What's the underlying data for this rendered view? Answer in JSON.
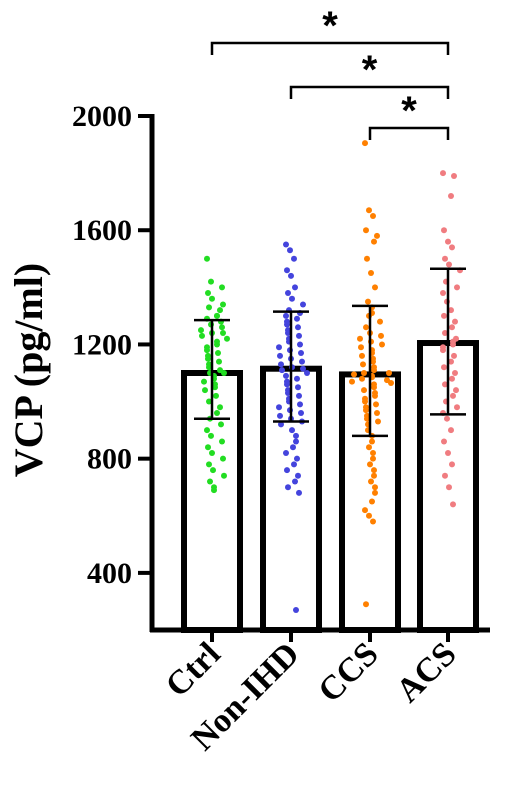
{
  "chart_data": {
    "type": "bar",
    "ylabel": "VCP (pg/ml)",
    "ylim": [
      200,
      2000
    ],
    "yticks": [
      400,
      800,
      1200,
      1600,
      2000
    ],
    "grid": false,
    "categories": [
      "Ctrl",
      "Non-IHD",
      "CCS",
      "ACS"
    ],
    "values": [
      1100,
      1115,
      1095,
      1205
    ],
    "error_bars": [
      {
        "low": 940,
        "high": 1285
      },
      {
        "low": 930,
        "high": 1315
      },
      {
        "low": 880,
        "high": 1335
      },
      {
        "low": 955,
        "high": 1465
      }
    ],
    "point_colors": [
      "#22dd22",
      "#4444dd",
      "#ff8000",
      "#f07c80"
    ],
    "points": [
      [
        1500,
        1420,
        1400,
        1380,
        1360,
        1340,
        1330,
        1320,
        1300,
        1300,
        1290,
        1280,
        1270,
        1260,
        1250,
        1240,
        1240,
        1230,
        1220,
        1210,
        1200,
        1190,
        1180,
        1170,
        1160,
        1150,
        1140,
        1130,
        1120,
        1110,
        1100,
        1100,
        1090,
        1080,
        1070,
        1060,
        1050,
        1040,
        1020,
        1000,
        980,
        960,
        940,
        920,
        900,
        880,
        860,
        840,
        820,
        800,
        780,
        760,
        740,
        720,
        700,
        690
      ],
      [
        1550,
        1530,
        1500,
        1460,
        1440,
        1400,
        1380,
        1360,
        1340,
        1320,
        1310,
        1300,
        1290,
        1280,
        1270,
        1260,
        1250,
        1240,
        1230,
        1220,
        1210,
        1200,
        1190,
        1180,
        1170,
        1160,
        1150,
        1140,
        1130,
        1120,
        1115,
        1110,
        1100,
        1090,
        1080,
        1070,
        1060,
        1050,
        1040,
        1030,
        1020,
        1010,
        1000,
        990,
        980,
        970,
        960,
        950,
        940,
        930,
        920,
        900,
        880,
        860,
        840,
        820,
        800,
        780,
        760,
        740,
        720,
        700,
        680,
        270
      ],
      [
        1905,
        1670,
        1650,
        1600,
        1580,
        1560,
        1500,
        1450,
        1400,
        1350,
        1330,
        1310,
        1300,
        1280,
        1260,
        1240,
        1230,
        1220,
        1210,
        1200,
        1190,
        1180,
        1170,
        1160,
        1150,
        1140,
        1130,
        1120,
        1110,
        1100,
        1100,
        1095,
        1090,
        1085,
        1080,
        1075,
        1070,
        1065,
        1060,
        1050,
        1040,
        1030,
        1020,
        1010,
        1000,
        990,
        980,
        970,
        960,
        950,
        940,
        930,
        920,
        900,
        880,
        860,
        840,
        820,
        800,
        780,
        760,
        740,
        720,
        700,
        680,
        650,
        620,
        600,
        580,
        290
      ],
      [
        1800,
        1790,
        1720,
        1600,
        1560,
        1540,
        1500,
        1480,
        1460,
        1420,
        1400,
        1380,
        1350,
        1320,
        1300,
        1280,
        1260,
        1240,
        1220,
        1210,
        1200,
        1190,
        1180,
        1160,
        1140,
        1120,
        1100,
        1080,
        1060,
        1040,
        1020,
        1000,
        980,
        960,
        940,
        900,
        860,
        820,
        780,
        740,
        700,
        640
      ]
    ],
    "significance": [
      {
        "from": 0,
        "to": 3,
        "label": "*"
      },
      {
        "from": 1,
        "to": 3,
        "label": "*"
      },
      {
        "from": 2,
        "to": 3,
        "label": "*"
      }
    ]
  }
}
